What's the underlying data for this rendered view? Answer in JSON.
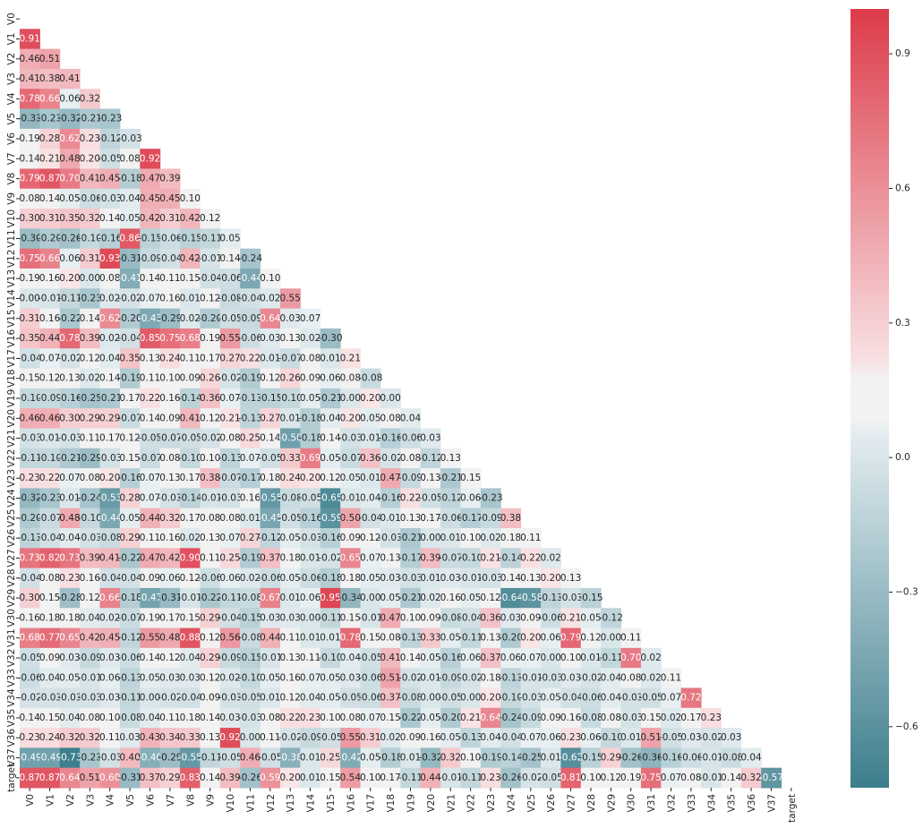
{
  "chart_data": {
    "type": "heatmap",
    "title": "",
    "xlabel": "",
    "ylabel": "",
    "mask": "upper triangle incl. diagonal",
    "labels": [
      "V0",
      "V1",
      "V2",
      "V3",
      "V4",
      "V5",
      "V6",
      "V7",
      "V8",
      "V9",
      "V10",
      "V11",
      "V12",
      "V13",
      "V14",
      "V15",
      "V16",
      "V17",
      "V18",
      "V19",
      "V20",
      "V21",
      "V22",
      "V23",
      "V24",
      "V25",
      "V26",
      "V27",
      "V28",
      "V29",
      "V30",
      "V31",
      "V32",
      "V33",
      "V34",
      "V35",
      "V36",
      "V37",
      "target"
    ],
    "rows": [
      [],
      [
        0.91
      ],
      [
        0.46,
        0.51
      ],
      [
        0.41,
        0.38,
        0.41
      ],
      [
        0.78,
        0.66,
        0.06,
        0.32
      ],
      [
        -0.33,
        -0.23,
        -0.32,
        -0.21,
        -0.23
      ],
      [
        0.19,
        0.28,
        0.62,
        0.23,
        -0.12,
        -0.03
      ],
      [
        0.14,
        0.21,
        0.48,
        0.2,
        -0.05,
        0.08,
        0.92
      ],
      [
        0.79,
        0.87,
        0.7,
        0.41,
        0.45,
        -0.18,
        0.47,
        0.39
      ],
      [
        0.08,
        0.14,
        0.05,
        -0.06,
        -0.03,
        0.04,
        0.45,
        0.45,
        0.1
      ],
      [
        0.3,
        0.31,
        0.35,
        0.32,
        0.14,
        0.05,
        0.42,
        0.31,
        0.42,
        0.12
      ],
      [
        -0.3,
        -0.2,
        -0.26,
        -0.1,
        -0.16,
        0.86,
        -0.15,
        -0.06,
        -0.15,
        -0.11,
        0.05
      ],
      [
        0.75,
        0.66,
        0.06,
        0.31,
        0.93,
        -0.31,
        -0.09,
        -0.04,
        0.42,
        -0.01,
        0.14,
        -0.24
      ],
      [
        0.19,
        0.16,
        0.2,
        -0.0,
        0.08,
        -0.41,
        0.14,
        0.11,
        0.15,
        -0.04,
        -0.06,
        -0.44,
        0.1
      ],
      [
        -0.0,
        -0.01,
        -0.11,
        -0.23,
        0.02,
        -0.02,
        0.07,
        0.16,
        0.01,
        0.12,
        -0.08,
        -0.04,
        0.02,
        0.55
      ],
      [
        0.31,
        0.16,
        -0.22,
        0.14,
        0.62,
        -0.2,
        -0.43,
        -0.29,
        0.02,
        -0.2,
        -0.05,
        -0.09,
        0.64,
        0.03,
        0.07
      ],
      [
        0.35,
        0.44,
        0.78,
        0.39,
        0.02,
        -0.04,
        0.85,
        0.75,
        0.68,
        0.19,
        0.55,
        -0.06,
        0.03,
        0.13,
        0.02,
        -0.3
      ],
      [
        -0.04,
        0.07,
        -0.02,
        0.12,
        0.04,
        0.35,
        0.13,
        0.24,
        0.11,
        0.17,
        0.27,
        0.22,
        0.01,
        -0.07,
        0.08,
        0.01,
        0.21
      ],
      [
        0.15,
        0.12,
        0.13,
        0.02,
        0.14,
        -0.19,
        0.11,
        0.1,
        0.09,
        0.26,
        -0.02,
        -0.19,
        0.12,
        0.26,
        0.09,
        0.06,
        0.08,
        -0.08
      ],
      [
        -0.1,
        -0.09,
        -0.16,
        -0.25,
        -0.21,
        0.17,
        0.22,
        0.16,
        -0.14,
        0.36,
        0.07,
        -0.13,
        -0.15,
        -0.1,
        0.05,
        -0.21,
        -0.0,
        0.2,
        0.0
      ],
      [
        0.46,
        0.46,
        0.3,
        0.29,
        0.29,
        -0.07,
        0.14,
        0.09,
        0.41,
        0.12,
        0.21,
        -0.13,
        0.27,
        0.01,
        -0.18,
        0.04,
        0.2,
        0.05,
        0.08,
        0.04
      ],
      [
        -0.03,
        0.01,
        -0.03,
        0.11,
        0.17,
        0.12,
        -0.05,
        -0.07,
        -0.05,
        -0.02,
        0.08,
        0.25,
        0.14,
        -0.5,
        -0.18,
        0.14,
        -0.03,
        0.01,
        -0.16,
        -0.06,
        0.03
      ],
      [
        -0.11,
        -0.1,
        -0.21,
        -0.29,
        -0.03,
        0.15,
        -0.07,
        0.08,
        -0.1,
        0.1,
        -0.13,
        0.07,
        -0.05,
        0.33,
        0.69,
        0.05,
        -0.07,
        0.36,
        -0.02,
        0.08,
        -0.12,
        0.13
      ],
      [
        0.23,
        0.22,
        0.07,
        0.08,
        0.2,
        -0.16,
        0.07,
        0.13,
        0.17,
        0.38,
        -0.07,
        -0.17,
        0.18,
        0.24,
        0.2,
        0.12,
        0.05,
        0.01,
        0.47,
        -0.09,
        0.13,
        -0.21,
        0.15
      ],
      [
        -0.32,
        -0.23,
        0.01,
        -0.24,
        -0.53,
        0.28,
        0.07,
        -0.03,
        -0.14,
        -0.01,
        -0.03,
        0.16,
        -0.55,
        -0.08,
        -0.05,
        -0.65,
        0.01,
        0.04,
        -0.16,
        0.22,
        -0.05,
        -0.12,
        0.06,
        -0.23
      ],
      [
        -0.2,
        -0.07,
        0.48,
        -0.1,
        -0.44,
        0.05,
        0.44,
        0.32,
        0.17,
        0.08,
        0.08,
        0.01,
        -0.45,
        -0.05,
        -0.16,
        -0.59,
        0.5,
        -0.04,
        0.01,
        0.13,
        0.17,
        -0.06,
        -0.17,
        -0.09,
        0.38
      ],
      [
        -0.13,
        -0.04,
        0.04,
        -0.03,
        -0.08,
        0.29,
        0.11,
        0.16,
        0.02,
        0.13,
        0.07,
        0.27,
        -0.12,
        0.05,
        -0.03,
        -0.16,
        0.09,
        0.12,
        -0.03,
        -0.21,
        0.0,
        0.01,
        0.1,
        0.02,
        0.18,
        0.11
      ],
      [
        0.73,
        0.82,
        0.73,
        0.39,
        0.41,
        -0.22,
        0.47,
        0.42,
        0.9,
        0.11,
        0.25,
        -0.19,
        0.37,
        0.18,
        0.01,
        -0.02,
        0.65,
        0.07,
        0.13,
        -0.17,
        0.39,
        -0.07,
        -0.1,
        0.21,
        -0.14,
        0.22,
        0.02
      ],
      [
        -0.04,
        0.08,
        0.23,
        0.16,
        -0.04,
        -0.04,
        0.09,
        0.06,
        0.12,
        -0.06,
        0.06,
        0.02,
        -0.06,
        0.05,
        -0.06,
        -0.18,
        0.18,
        0.05,
        0.03,
        -0.03,
        0.01,
        0.03,
        -0.01,
        -0.03,
        0.14,
        0.13,
        0.2,
        0.13
      ],
      [
        0.3,
        0.15,
        -0.28,
        0.12,
        0.66,
        -0.18,
        -0.47,
        -0.31,
        -0.01,
        -0.22,
        -0.11,
        -0.08,
        0.67,
        0.01,
        0.06,
        0.95,
        -0.34,
        0.0,
        0.05,
        -0.21,
        0.02,
        0.16,
        0.05,
        0.12,
        -0.64,
        -0.58,
        -0.13,
        -0.03,
        -0.15
      ],
      [
        0.16,
        0.18,
        0.18,
        0.04,
        0.02,
        -0.07,
        0.19,
        0.17,
        0.15,
        0.29,
        -0.04,
        -0.15,
        0.03,
        0.03,
        -0.0,
        -0.11,
        0.15,
        -0.01,
        0.47,
        0.1,
        0.09,
        -0.08,
        -0.04,
        0.36,
        0.03,
        0.09,
        -0.06,
        0.21,
        0.05,
        -0.12
      ],
      [
        0.68,
        0.77,
        0.65,
        0.42,
        0.45,
        -0.12,
        0.55,
        0.48,
        0.88,
        0.12,
        0.56,
        -0.08,
        0.44,
        0.11,
        0.01,
        0.01,
        0.78,
        0.15,
        0.08,
        -0.13,
        0.33,
        0.05,
        -0.11,
        0.13,
        -0.2,
        0.2,
        0.06,
        0.79,
        0.12,
        -0.0,
        0.11
      ],
      [
        -0.05,
        0.09,
        0.03,
        -0.09,
        0.03,
        -0.06,
        0.14,
        0.12,
        0.04,
        0.29,
        -0.09,
        -0.15,
        -0.01,
        0.13,
        0.11,
        -0.1,
        0.04,
        -0.05,
        0.41,
        0.14,
        0.05,
        -0.16,
        0.06,
        0.37,
        0.06,
        0.07,
        -0.0,
        0.1,
        0.01,
        -0.11,
        0.7,
        0.02
      ],
      [
        -0.06,
        0.04,
        0.05,
        -0.01,
        0.06,
        -0.13,
        0.05,
        0.03,
        0.03,
        0.12,
        0.02,
        -0.1,
        0.05,
        0.16,
        0.07,
        0.05,
        0.03,
        -0.06,
        0.51,
        -0.02,
        0.01,
        -0.09,
        -0.02,
        0.18,
        -0.13,
        -0.01,
        -0.03,
        0.03,
        -0.02,
        0.04,
        0.08,
        0.02,
        0.11
      ],
      [
        -0.02,
        -0.03,
        -0.03,
        -0.03,
        0.03,
        -0.11,
        -0.0,
        -0.02,
        -0.04,
        0.09,
        -0.03,
        -0.05,
        0.01,
        0.12,
        0.04,
        0.05,
        -0.05,
        -0.06,
        0.37,
        -0.08,
        0.0,
        -0.05,
        -0.0,
        0.2,
        -0.1,
        -0.03,
        0.05,
        -0.04,
        -0.06,
        0.04,
        -0.03,
        -0.05,
        0.07,
        0.72
      ],
      [
        0.14,
        0.15,
        0.04,
        0.08,
        0.1,
        -0.08,
        0.04,
        0.11,
        0.18,
        0.14,
        0.03,
        -0.03,
        0.08,
        0.22,
        0.23,
        0.1,
        0.08,
        0.07,
        0.15,
        -0.22,
        0.05,
        -0.2,
        0.21,
        0.64,
        -0.24,
        -0.09,
        0.09,
        0.16,
        -0.08,
        0.08,
        -0.03,
        0.15,
        0.02,
        0.17,
        0.23
      ],
      [
        0.23,
        0.24,
        0.32,
        0.32,
        0.11,
        0.03,
        0.43,
        0.34,
        0.33,
        0.13,
        0.92,
        0.0,
        0.11,
        -0.02,
        -0.09,
        -0.05,
        0.55,
        0.31,
        0.02,
        0.09,
        0.16,
        0.05,
        -0.13,
        0.04,
        -0.04,
        0.07,
        0.06,
        0.23,
        0.06,
        -0.1,
        0.01,
        0.51,
        -0.05,
        0.03,
        -0.02,
        0.03
      ],
      [
        -0.49,
        -0.49,
        -0.73,
        -0.23,
        -0.03,
        0.4,
        -0.4,
        -0.29,
        -0.55,
        -0.11,
        -0.05,
        0.46,
        -0.05,
        -0.38,
        0.01,
        0.25,
        -0.42,
        0.05,
        -0.18,
        0.01,
        -0.32,
        0.32,
        0.1,
        -0.19,
        -0.14,
        -0.25,
        0.01,
        -0.62,
        -0.15,
        0.29,
        -0.26,
        -0.36,
        -0.16,
        -0.06,
        -0.01,
        -0.08,
        0.04
      ],
      [
        0.87,
        0.87,
        0.64,
        0.51,
        0.6,
        -0.31,
        0.37,
        0.29,
        0.83,
        0.14,
        0.39,
        -0.26,
        0.59,
        0.2,
        0.01,
        0.15,
        0.54,
        0.1,
        0.17,
        -0.11,
        0.44,
        -0.01,
        -0.11,
        0.23,
        -0.26,
        -0.02,
        -0.05,
        0.81,
        0.1,
        0.12,
        0.19,
        0.75,
        0.07,
        0.08,
        -0.01,
        0.14,
        0.32,
        -0.57
      ]
    ],
    "colorbar": {
      "range": [
        -0.736,
        1.0
      ],
      "ticks": [
        0.9,
        0.6,
        0.3,
        0.0,
        -0.3,
        -0.6
      ],
      "tick_labels": [
        "0.9",
        "0.6",
        "0.3",
        "0.0",
        "−0.3",
        "−0.6"
      ]
    },
    "colors": {
      "low": "#3d7e8d",
      "low_mid": "#e8f0f3",
      "center": "#f2f2f2",
      "high_mid": "#f9e4e6",
      "high": "#dc3b4a",
      "text_dark": "#262626",
      "text_light": "#ffffff"
    }
  }
}
